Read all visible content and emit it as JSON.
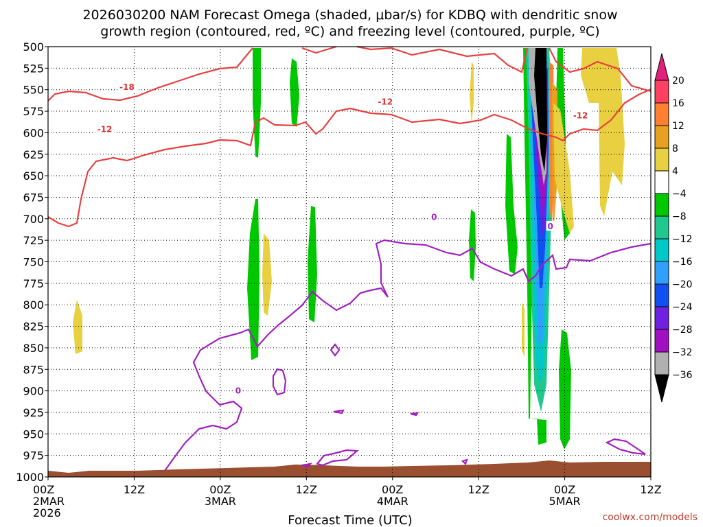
{
  "chart_data": {
    "type": "heatmap",
    "title_line1": "2026030200 NAM Forecast Omega (shaded, μbar/s) for KDBQ with dendritic snow",
    "title_line2": "growth region (contoured, red, ºC) and freezing level (contoured, purple, ºC)",
    "xlabel": "Forecast Time (UTC)",
    "credit": "coolwx.com/models",
    "y_ticks": [
      "500",
      "525",
      "550",
      "575",
      "600",
      "625",
      "650",
      "675",
      "700",
      "725",
      "750",
      "775",
      "800",
      "825",
      "850",
      "875",
      "900",
      "925",
      "950",
      "975",
      "1000"
    ],
    "y_range": [
      500,
      1000
    ],
    "x_range_hours": [
      0,
      84
    ],
    "x_ticks": [
      {
        "h": 0,
        "l1": "00Z",
        "l2": "2MAR",
        "l3": "2026"
      },
      {
        "h": 12,
        "l1": "12Z",
        "l2": "",
        "l3": ""
      },
      {
        "h": 24,
        "l1": "00Z",
        "l2": "3MAR",
        "l3": ""
      },
      {
        "h": 36,
        "l1": "12Z",
        "l2": "",
        "l3": ""
      },
      {
        "h": 48,
        "l1": "00Z",
        "l2": "4MAR",
        "l3": ""
      },
      {
        "h": 60,
        "l1": "12Z",
        "l2": "",
        "l3": ""
      },
      {
        "h": 72,
        "l1": "00Z",
        "l2": "5MAR",
        "l3": ""
      },
      {
        "h": 84,
        "l1": "12Z",
        "l2": "",
        "l3": ""
      }
    ],
    "grid": true,
    "colorbar": {
      "labels": [
        "20",
        "16",
        "12",
        "8",
        "4",
        "−4",
        "−8",
        "−12",
        "−16",
        "−20",
        "−24",
        "−28",
        "−32",
        "−36"
      ],
      "colors": [
        "#ff4060",
        "#ff8030",
        "#e8a020",
        "#e8d040",
        "#ffffff",
        "#00c800",
        "#20c890",
        "#00c8c8",
        "#30a0ff",
        "#1050f0",
        "#7020e0",
        "#a010c0",
        "#b0b0b0"
      ]
    },
    "contour_labels": [
      {
        "text": "-18",
        "h": 11.0,
        "p": 547,
        "color": "#e03030"
      },
      {
        "text": "-12",
        "h": 7.9,
        "p": 596,
        "color": "#e03030"
      },
      {
        "text": "-12",
        "h": 47.0,
        "p": 564,
        "color": "#e03030"
      },
      {
        "text": "-12",
        "h": 74.2,
        "p": 580,
        "color": "#e03030"
      },
      {
        "text": "0",
        "h": 53.8,
        "p": 698,
        "color": "#a020c0"
      },
      {
        "text": "0",
        "h": 70.0,
        "p": 709,
        "color": "#a020c0"
      },
      {
        "text": "0",
        "h": 26.5,
        "p": 900,
        "color": "#a020c0"
      }
    ]
  }
}
